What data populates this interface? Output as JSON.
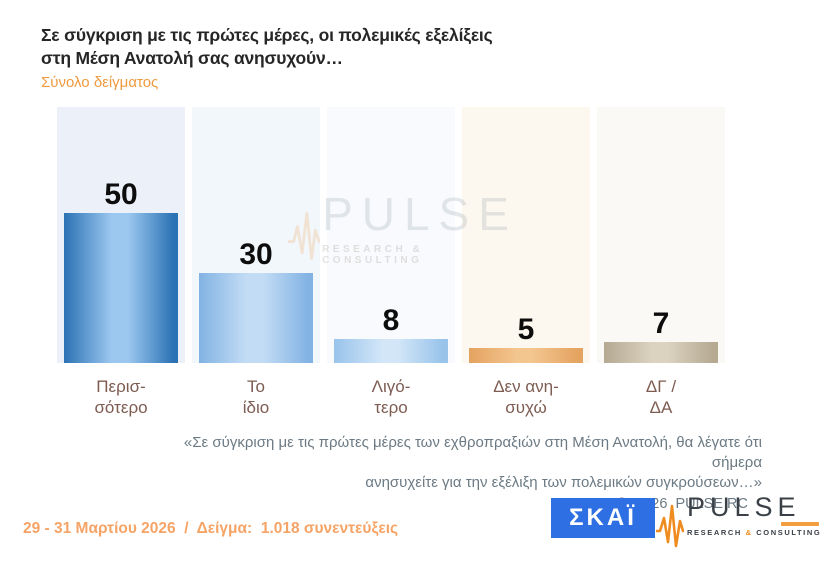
{
  "header": {
    "title_line1": "Σε σύγκριση με τις πρώτες μέρες, οι πολεμικές εξελίξεις",
    "title_line2": "στη Μέση Ανατολή σας ανησυχούν…",
    "subtitle": "Σύνολο δείγματος"
  },
  "chart_data": {
    "type": "bar",
    "title": "Σε σύγκριση με τις πρώτες μέρες, οι πολεμικές εξελίξεις στη Μέση Ανατολή σας ανησυχούν…",
    "subtitle": "Σύνολο δείγματος",
    "categories": [
      "Περισσότερο",
      "Το ίδιο",
      "Λιγότερο",
      "Δεν ανησυχώ",
      "ΔΓ / ΔΑ"
    ],
    "category_lines": [
      [
        "Περισ-",
        "σότερο"
      ],
      [
        "Το",
        "ίδιο"
      ],
      [
        "Λιγό-",
        "τερο"
      ],
      [
        "Δεν ανη-",
        "συχώ"
      ],
      [
        "ΔΓ /",
        "ΔΑ"
      ]
    ],
    "values": [
      50,
      30,
      8,
      5,
      7
    ],
    "value_labels": true,
    "ylim": [
      0,
      85
    ],
    "grid": false,
    "legend": false,
    "bar_colors": [
      {
        "edge": "#2b72b4",
        "mid": "#9cc8f0"
      },
      {
        "edge": "#82b3e3",
        "mid": "#c3dcf5"
      },
      {
        "edge": "#98c3ea",
        "mid": "#d2e6f8"
      },
      {
        "edge": "#e4a360",
        "mid": "#f3c58f"
      },
      {
        "edge": "#b5a992",
        "mid": "#dbd2c0"
      }
    ],
    "column_bg": [
      "#ecf1f9",
      "#f2f7fc",
      "#f8fafd",
      "#fdf8ef",
      "#faf9f5"
    ]
  },
  "watermark": {
    "name": "PULSE",
    "tagline": "RESEARCH & CONSULTING"
  },
  "footnote": {
    "line1": "«Σε σύγκριση με τις πρώτες μέρες των εχθροπραξιών στη Μέση Ανατολή, θα λέγατε ότι σήμερα",
    "line2": "ανησυχείτε για την εξέλιξη των πολεμικών συγκρούσεων…»",
    "copyright": "©  2026  PULSE RC"
  },
  "footer": {
    "fieldwork": "29 - 31 Μαρτίου 2026  /  Δείγμα:  1.018 συνεντεύξεις",
    "skai_logo": "ΣΚΑΪ",
    "pulse_logo": "PULSE",
    "pulse_tagline_left": "RESEARCH ",
    "pulse_tagline_amp": "&",
    "pulse_tagline_right": " CONSULTING"
  },
  "colors": {
    "accent_orange": "#ef9a3f",
    "footer_orange": "#f6a366",
    "skai_blue": "#2e6fe3",
    "category_label": "#7d5c52",
    "footnote_gray": "#6b7a84",
    "pulse_logo_orange": "#ef8c1f",
    "pulse_logo_dark": "#3a4047"
  }
}
